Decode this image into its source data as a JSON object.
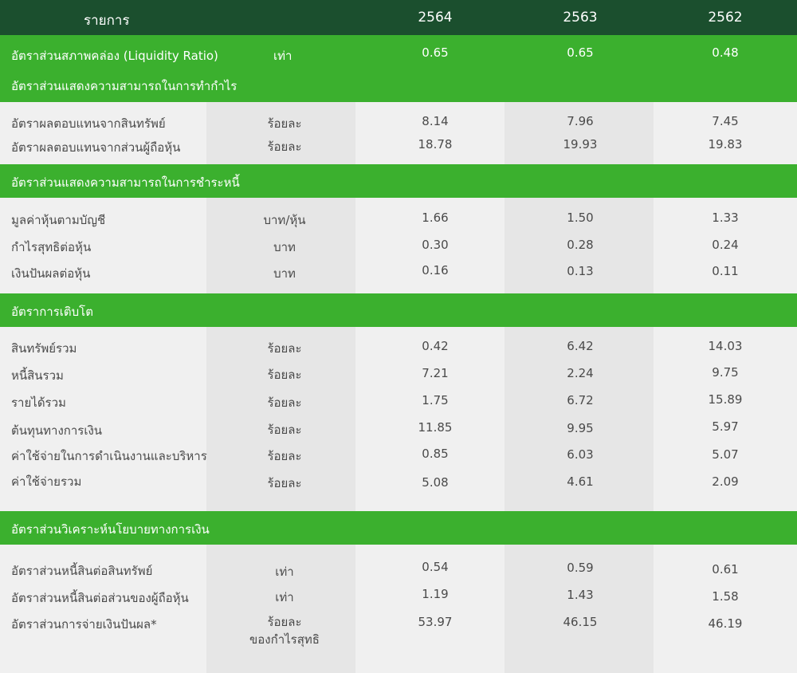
{
  "header": {
    "item": "รายการ",
    "y1": "2564",
    "y2": "2563",
    "y3": "2562"
  },
  "liquidity": {
    "label": "อัตราส่วนสภาพคล่อง (Liquidity Ratio)",
    "unit": "เท่า",
    "v1": "0.65",
    "v2": "0.65",
    "v3": "0.48"
  },
  "sections": {
    "profit": {
      "title": "อัตราส่วนแสดงความสามารถในการทำกำไร",
      "rows": [
        {
          "label": "อัตราผลตอบแทนจากสินทรัพย์",
          "unit": "ร้อยละ",
          "v1": "8.14",
          "v2": "7.96",
          "v3": "7.45"
        },
        {
          "label": "อัตราผลตอบแทนจากส่วนผู้ถือหุ้น",
          "unit": "ร้อยละ",
          "v1": "18.78",
          "v2": "19.93",
          "v3": "19.83"
        }
      ]
    },
    "debt": {
      "title": "อัตราส่วนแสดงความสามารถในการชำระหนี้",
      "rows": [
        {
          "label": "มูลค่าหุ้นตามบัญชี",
          "unit": "บาท/หุ้น",
          "v1": "1.66",
          "v2": "1.50",
          "v3": "1.33"
        },
        {
          "label": "กำไรสุทธิต่อหุ้น",
          "unit": "บาท",
          "v1": "0.30",
          "v2": "0.28",
          "v3": "0.24"
        },
        {
          "label": "เงินปันผลต่อหุ้น",
          "unit": "บาท",
          "v1": "0.16",
          "v2": "0.13",
          "v3": "0.11"
        }
      ]
    },
    "growth": {
      "title": "อัตราการเติบโต",
      "rows": [
        {
          "label": "สินทรัพย์รวม",
          "unit": "ร้อยละ",
          "v1": "0.42",
          "v2": "6.42",
          "v3": "14.03"
        },
        {
          "label": "หนี้สินรวม",
          "unit": "ร้อยละ",
          "v1": "7.21",
          "v2": "2.24",
          "v3": "9.75"
        },
        {
          "label": "รายได้รวม",
          "unit": "ร้อยละ",
          "v1": "1.75",
          "v2": "6.72",
          "v3": "15.89"
        },
        {
          "label": "ต้นทุนทางการเงิน",
          "unit": "ร้อยละ",
          "v1": "11.85",
          "v2": "9.95",
          "v3": "5.97"
        },
        {
          "label": "ค่าใช้จ่ายในการดำเนินงานและบริหาร",
          "unit": "ร้อยละ",
          "v1": "0.85",
          "v2": "6.03",
          "v3": "5.07"
        },
        {
          "label": "ค่าใช้จ่ายรวม",
          "unit": "ร้อยละ",
          "v1": "5.08",
          "v2": "4.61",
          "v3": "2.09"
        }
      ]
    },
    "policy": {
      "title": "อัตราส่วนวิเคราะห์นโยบายทางการเงิน",
      "rows": [
        {
          "label": "อัตราส่วนหนี้สินต่อสินทรัพย์",
          "unit": "เท่า",
          "v1": "0.54",
          "v2": "0.59",
          "v3": "0.61"
        },
        {
          "label": "อัตราส่วนหนี้สินต่อส่วนของผู้ถือหุ้น",
          "unit": "เท่า",
          "v1": "1.19",
          "v2": "1.43",
          "v3": "1.58"
        },
        {
          "label": "อัตราส่วนการจ่ายเงินปันผล*",
          "unit": "ร้อยละ",
          "unit2": "ของกำไรสุทธิ",
          "v1": "53.97",
          "v2": "46.15",
          "v3": "46.19"
        }
      ]
    }
  }
}
